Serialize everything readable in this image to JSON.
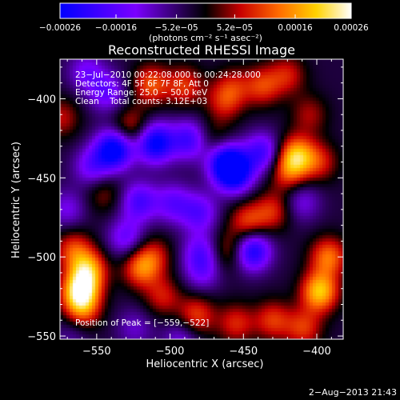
{
  "chart_data": {
    "type": "heatmap",
    "title": "Reconstructed RHESSI Image",
    "xlabel": "Heliocentric X (arcsec)",
    "ylabel": "Heliocentric Y (arcsec)",
    "xlim": [
      -575,
      -382
    ],
    "ylim": [
      -552,
      -375
    ],
    "x_ticks": [
      -550,
      -500,
      -450,
      -400
    ],
    "x_tick_labels": [
      "−550",
      "−500",
      "−450",
      "−400"
    ],
    "y_ticks": [
      -400,
      -450,
      -500,
      -550
    ],
    "y_tick_labels": [
      "−400",
      "−450",
      "−500",
      "−550"
    ],
    "colorbar": {
      "min": -0.00026,
      "max": 0.00026,
      "ticks": [
        -0.00026,
        -0.00016,
        -5.2e-05,
        5.2e-05,
        0.00016,
        0.00026
      ],
      "tick_labels": [
        "−0.00026",
        "−0.00016",
        "−5.2e−05",
        "5.2e−05",
        "0.00016",
        "0.00026"
      ],
      "units_label": "(photons cm⁻² s⁻¹ asec⁻²)",
      "colors": [
        "#0000ff",
        "#7a00ff",
        "#000000",
        "#c80000",
        "#ff6a00",
        "#ffd200",
        "#ffffff"
      ]
    },
    "annotations": [
      "23−Jul−2010 00:22:08.000 to 00:24:28.000",
      "Detectors: 4F 5F 6F 7F 8F, Att 0",
      "Energy Range: 25.0 − 50.0 keV",
      "Clean    Total counts: 3.12E+03"
    ],
    "peak_label": "Position of Peak = [−559,−522]",
    "peak": [
      -559,
      -522
    ],
    "features": [
      {
        "x": -561,
        "y": -522,
        "v": 0.00026
      },
      {
        "x": -556,
        "y": -508,
        "v": 0.00019
      },
      {
        "x": -566,
        "y": -495,
        "v": 0.00012
      },
      {
        "x": -398,
        "y": -522,
        "v": 0.00022
      },
      {
        "x": -392,
        "y": -500,
        "v": 0.00016
      },
      {
        "x": -414,
        "y": -436,
        "v": 0.0002
      },
      {
        "x": -420,
        "y": -447,
        "v": 0.00011
      },
      {
        "x": -520,
        "y": -507,
        "v": 0.00015
      },
      {
        "x": -505,
        "y": -525,
        "v": 0.0001
      },
      {
        "x": -511,
        "y": -499,
        "v": 9e-05
      },
      {
        "x": -513,
        "y": -391,
        "v": 0.00014
      },
      {
        "x": -490,
        "y": -392,
        "v": 0.00012
      },
      {
        "x": -463,
        "y": -402,
        "v": 0.0001
      },
      {
        "x": -457,
        "y": -392,
        "v": 8e-05
      },
      {
        "x": -527,
        "y": -418,
        "v": 0.00011
      },
      {
        "x": -574,
        "y": -412,
        "v": 9e-05
      },
      {
        "x": -437,
        "y": -392,
        "v": 0.00012
      },
      {
        "x": -420,
        "y": -385,
        "v": 0.0001
      },
      {
        "x": -447,
        "y": -478,
        "v": 0.00013
      },
      {
        "x": -430,
        "y": -471,
        "v": 0.00011
      },
      {
        "x": -460,
        "y": -496,
        "v": 0.0001
      },
      {
        "x": -482,
        "y": -537,
        "v": 0.00013
      },
      {
        "x": -455,
        "y": -542,
        "v": 0.00011
      },
      {
        "x": -430,
        "y": -540,
        "v": 0.00012
      },
      {
        "x": -398,
        "y": -440,
        "v": 0.0001
      },
      {
        "x": -405,
        "y": -410,
        "v": 8e-05
      },
      {
        "x": -470,
        "y": -425,
        "v": 6e-05
      },
      {
        "x": -545,
        "y": -460,
        "v": 7e-05
      },
      {
        "x": -560,
        "y": -535,
        "v": 0.00012
      },
      {
        "x": -409,
        "y": -545,
        "v": 0.00012
      },
      {
        "x": -538,
        "y": -432,
        "v": -0.00026
      },
      {
        "x": -510,
        "y": -428,
        "v": -0.00024
      },
      {
        "x": -487,
        "y": -426,
        "v": -0.00016
      },
      {
        "x": -462,
        "y": -440,
        "v": -0.0002
      },
      {
        "x": -456,
        "y": -447,
        "v": -0.00023
      },
      {
        "x": -437,
        "y": -434,
        "v": -0.00016
      },
      {
        "x": -553,
        "y": -443,
        "v": -0.00012
      },
      {
        "x": -521,
        "y": -465,
        "v": -0.00015
      },
      {
        "x": -498,
        "y": -466,
        "v": -0.00012
      },
      {
        "x": -480,
        "y": -472,
        "v": -0.00013
      },
      {
        "x": -444,
        "y": -496,
        "v": -0.00022
      },
      {
        "x": -479,
        "y": -497,
        "v": -0.00012
      },
      {
        "x": -530,
        "y": -488,
        "v": -0.00012
      },
      {
        "x": -543,
        "y": -396,
        "v": -0.00012
      },
      {
        "x": -557,
        "y": -383,
        "v": -0.0001
      },
      {
        "x": -570,
        "y": -470,
        "v": -9e-05
      },
      {
        "x": -478,
        "y": -510,
        "v": -9e-05
      },
      {
        "x": -410,
        "y": -465,
        "v": -9e-05
      },
      {
        "x": -492,
        "y": -552,
        "v": -9e-05
      },
      {
        "x": -566,
        "y": -548,
        "v": -6e-05
      },
      {
        "x": -524,
        "y": -545,
        "v": -7e-05
      }
    ]
  },
  "footer": {
    "timestamp": "2−Aug−2013 21:43"
  }
}
